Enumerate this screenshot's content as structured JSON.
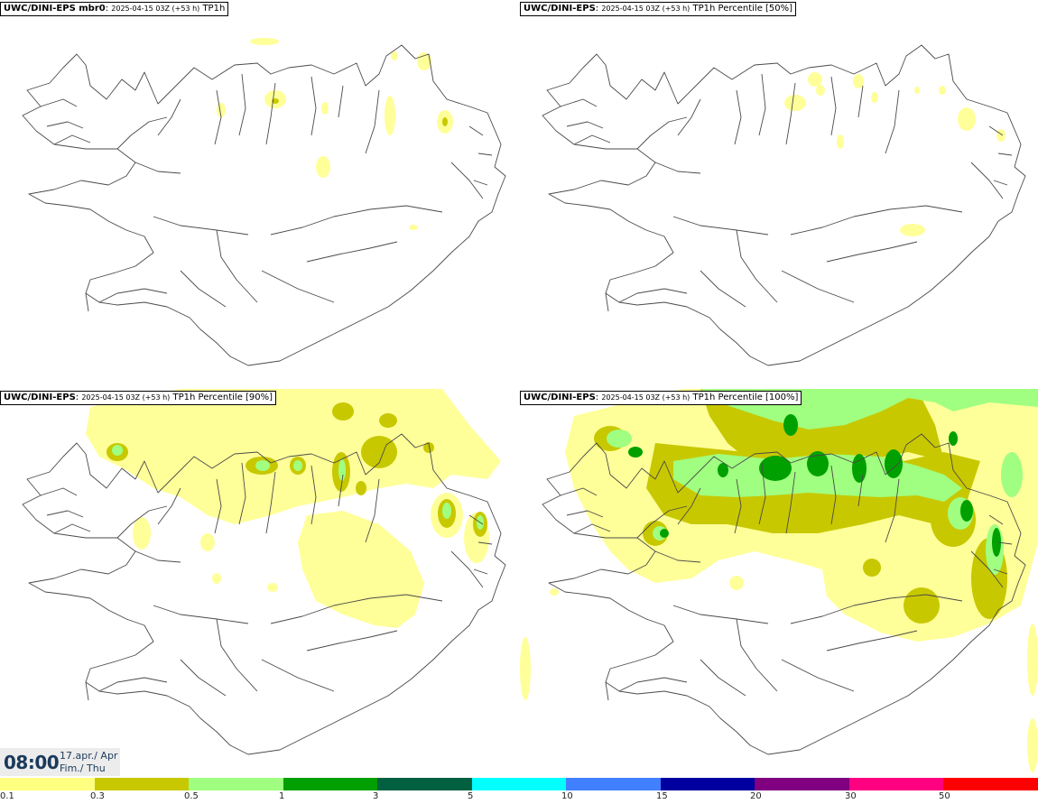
{
  "panels": [
    {
      "model": "UWC/DINI-EPS mbr0",
      "info": "2025-04-15 03Z (+53 h)",
      "param": "TP1h"
    },
    {
      "model": "UWC/DINI-EPS",
      "info": "2025-04-15 03Z (+53 h)",
      "param": "TP1h Percentile [50%]"
    },
    {
      "model": "UWC/DINI-EPS",
      "info": "2025-04-15 03Z (+53 h)",
      "param": "TP1h Percentile [90%]"
    },
    {
      "model": "UWC/DINI-EPS",
      "info": "2025-04-15 03Z (+53 h)",
      "param": "TP1h Percentile [100%]"
    }
  ],
  "valid_time": {
    "time": "08:00",
    "date": "17.apr./ Apr",
    "day": "Fim./ Thu"
  },
  "legend": {
    "labels": [
      "0.1",
      "0.3",
      "0.5",
      "1",
      "3",
      "5",
      "10",
      "15",
      "20",
      "30",
      "50"
    ],
    "colors": [
      "#ffff80",
      "#c8c800",
      "#a0ff80",
      "#00a000",
      "#006040",
      "#00ffff",
      "#4080ff",
      "#0000a0",
      "#800080",
      "#ff0080",
      "#ff0000"
    ]
  }
}
